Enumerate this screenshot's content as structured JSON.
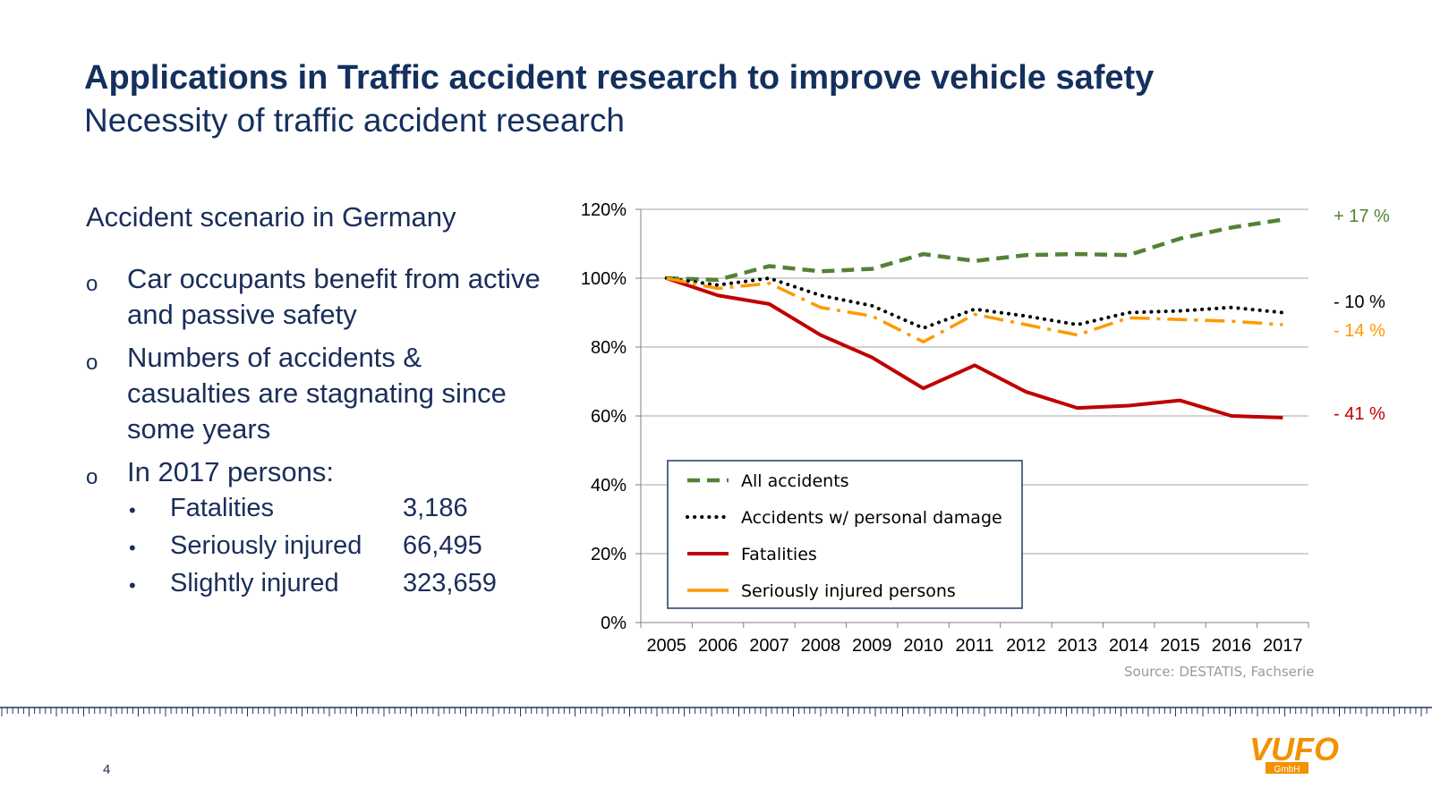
{
  "header": {
    "title": "Applications in Traffic accident research to improve vehicle safety",
    "subtitle": "Necessity of traffic accident research"
  },
  "left": {
    "section_title": "Accident scenario in Germany",
    "bullet_marker": "o",
    "sub_marker": "•",
    "bullets": [
      "Car occupants benefit from active and passive safety",
      "Numbers of accidents & casualties are stagnating since some years",
      "In 2017 persons:"
    ],
    "stats": [
      {
        "label": "Fatalities",
        "value": "3,186"
      },
      {
        "label": "Seriously injured",
        "value": "66,495"
      },
      {
        "label": "Slightly injured",
        "value": "323,659"
      }
    ]
  },
  "footer": {
    "page_number": "4",
    "source": "Source: DESTATIS, Fachserie",
    "logo_text": "VUFO",
    "logo_sub": "GmbH"
  },
  "colors": {
    "title": "#14305e",
    "all_accidents": "#548235",
    "personal_damage": "#000000",
    "fatalities": "#c00000",
    "seriously_injured": "#ff9900",
    "legend_border": "#1f3864",
    "logo": "#f39200"
  },
  "chart_data": {
    "type": "line",
    "categories": [
      "2005",
      "2006",
      "2007",
      "2008",
      "2009",
      "2010",
      "2011",
      "2012",
      "2013",
      "2014",
      "2015",
      "2016",
      "2017"
    ],
    "ylim": [
      0,
      1.2
    ],
    "yticks": [
      "0%",
      "20%",
      "40%",
      "60%",
      "80%",
      "100%",
      "120%"
    ],
    "grid": true,
    "legend_position": "bottom-left",
    "series": [
      {
        "name": "All accidents",
        "style": "dashed",
        "color": "#548235",
        "end_label": "+ 17 %",
        "values": [
          1.0,
          0.995,
          1.035,
          1.02,
          1.027,
          1.07,
          1.05,
          1.067,
          1.07,
          1.067,
          1.115,
          1.147,
          1.17
        ]
      },
      {
        "name": "Accidents w/ personal damage",
        "style": "dotted",
        "color": "#000000",
        "end_label": "- 10 %",
        "values": [
          1.0,
          0.98,
          1.0,
          0.95,
          0.92,
          0.855,
          0.91,
          0.89,
          0.865,
          0.9,
          0.905,
          0.915,
          0.9
        ]
      },
      {
        "name": "Fatalities",
        "style": "solid",
        "color": "#c00000",
        "end_label": "- 41 %",
        "values": [
          1.0,
          0.95,
          0.925,
          0.835,
          0.77,
          0.68,
          0.747,
          0.67,
          0.623,
          0.63,
          0.645,
          0.6,
          0.595
        ]
      },
      {
        "name": "Seriously injured persons",
        "style": "dashdot",
        "color": "#ff9900",
        "end_label": "- 14 %",
        "values": [
          1.0,
          0.97,
          0.985,
          0.915,
          0.89,
          0.815,
          0.895,
          0.865,
          0.835,
          0.885,
          0.88,
          0.875,
          0.865
        ]
      }
    ]
  }
}
